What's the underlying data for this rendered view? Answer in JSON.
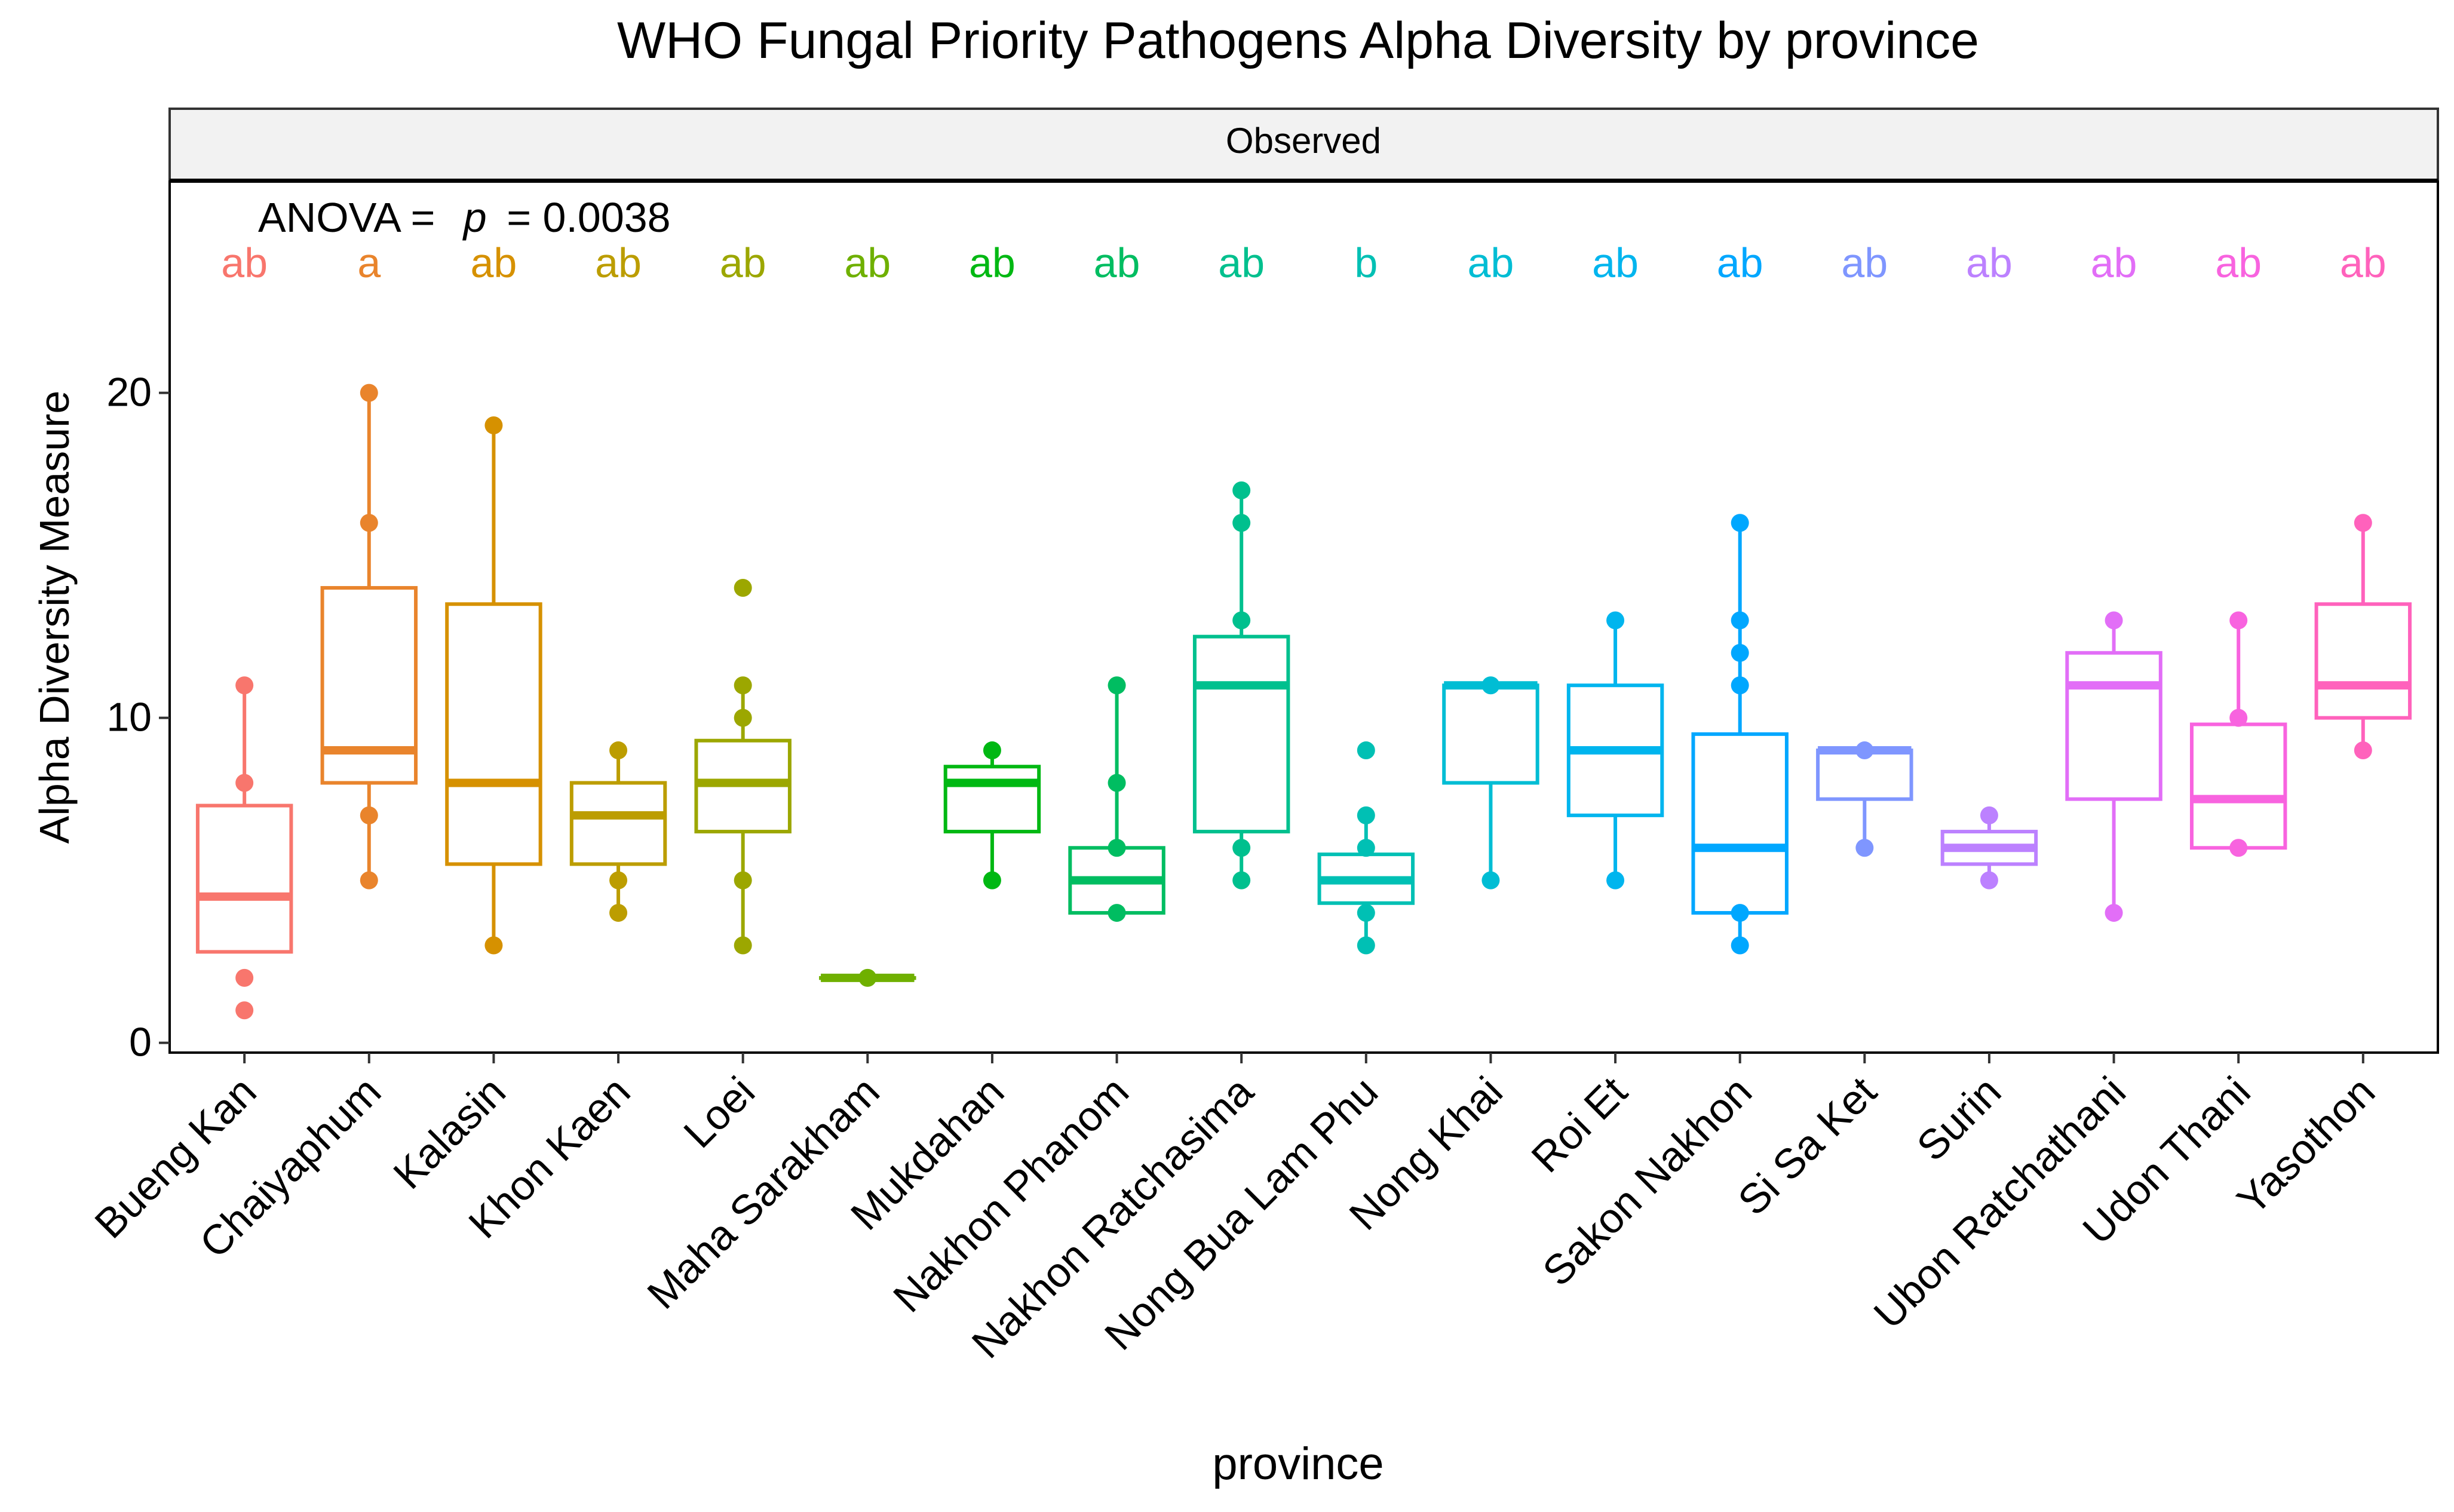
{
  "chart_data": {
    "type": "box",
    "title": "WHO Fungal Priority Pathogens Alpha Diversity by province",
    "facet_label": "Observed",
    "annotation": {
      "prefix": "ANOVA =",
      "p_symbol": "p",
      "p_value_text": "= 0.0038"
    },
    "xlabel": "province",
    "ylabel": "Alpha Diversity Measure",
    "ylim": [
      -0.3,
      26.5
    ],
    "yticks": [
      0,
      10,
      20
    ],
    "letter_y": 24,
    "groups": [
      {
        "name": "Bueng Kan",
        "color": "#F8766D",
        "letter": "ab",
        "box": {
          "q1": 2.8,
          "median": 4.5,
          "q3": 7.3,
          "lower": 2.8,
          "upper": 11
        },
        "points": [
          11,
          8,
          2,
          1
        ]
      },
      {
        "name": "Chaiyaphum",
        "color": "#E9842C",
        "letter": "a",
        "box": {
          "q1": 8,
          "median": 9,
          "q3": 14,
          "lower": 5,
          "upper": 20
        },
        "points": [
          20,
          16,
          7,
          5
        ]
      },
      {
        "name": "Kalasin",
        "color": "#D69100",
        "letter": "ab",
        "box": {
          "q1": 5.5,
          "median": 8,
          "q3": 13.5,
          "lower": 3,
          "upper": 19
        },
        "points": [
          19,
          3
        ]
      },
      {
        "name": "Khon Kaen",
        "color": "#BC9D00",
        "letter": "ab",
        "box": {
          "q1": 5.5,
          "median": 7,
          "q3": 8,
          "lower": 4,
          "upper": 9
        },
        "points": [
          9,
          5,
          4
        ]
      },
      {
        "name": "Loei",
        "color": "#9CA700",
        "letter": "ab",
        "box": {
          "q1": 6.5,
          "median": 8,
          "q3": 9.3,
          "lower": 3,
          "upper": 11
        },
        "points": [
          14,
          11,
          10,
          5,
          3
        ]
      },
      {
        "name": "Maha Sarakham",
        "color": "#6FB000",
        "letter": "ab",
        "box": {
          "q1": 2,
          "median": 2,
          "q3": 2,
          "lower": 2,
          "upper": 2
        },
        "points": [
          2
        ]
      },
      {
        "name": "Mukdahan",
        "color": "#00B813",
        "letter": "ab",
        "box": {
          "q1": 6.5,
          "median": 8,
          "q3": 8.5,
          "lower": 5,
          "upper": 9
        },
        "points": [
          9,
          5
        ]
      },
      {
        "name": "Nakhon Phanom",
        "color": "#00BD61",
        "letter": "ab",
        "box": {
          "q1": 4,
          "median": 5,
          "q3": 6,
          "lower": 4,
          "upper": 11
        },
        "points": [
          11,
          8,
          6,
          4
        ]
      },
      {
        "name": "Nakhon Ratchasima",
        "color": "#00C08E",
        "letter": "ab",
        "box": {
          "q1": 6.5,
          "median": 11,
          "q3": 12.5,
          "lower": 5,
          "upper": 17
        },
        "points": [
          17,
          16,
          13,
          6,
          5
        ]
      },
      {
        "name": "Nong Bua Lam Phu",
        "color": "#00C0B4",
        "letter": "b",
        "box": {
          "q1": 4.3,
          "median": 5,
          "q3": 5.8,
          "lower": 3,
          "upper": 7
        },
        "points": [
          9,
          7,
          6,
          4,
          3
        ]
      },
      {
        "name": "Nong Khai",
        "color": "#00BDD4",
        "letter": "ab",
        "box": {
          "q1": 8,
          "median": 11,
          "q3": 11,
          "lower": 5,
          "upper": 11
        },
        "points": [
          11,
          5
        ]
      },
      {
        "name": "Roi Et",
        "color": "#00B5EE",
        "letter": "ab",
        "box": {
          "q1": 7,
          "median": 9,
          "q3": 11,
          "lower": 5,
          "upper": 13
        },
        "points": [
          13,
          5
        ]
      },
      {
        "name": "Sakon Nakhon",
        "color": "#00A7FF",
        "letter": "ab",
        "box": {
          "q1": 4,
          "median": 6,
          "q3": 9.5,
          "lower": 3,
          "upper": 16
        },
        "points": [
          16,
          13,
          12,
          11,
          4,
          3
        ]
      },
      {
        "name": "Si Sa Ket",
        "color": "#7F96FF",
        "letter": "ab",
        "box": {
          "q1": 7.5,
          "median": 9,
          "q3": 9,
          "lower": 6,
          "upper": 9
        },
        "points": [
          9,
          6
        ]
      },
      {
        "name": "Surin",
        "color": "#BC81FF",
        "letter": "ab",
        "box": {
          "q1": 5.5,
          "median": 6,
          "q3": 6.5,
          "lower": 5,
          "upper": 7
        },
        "points": [
          7,
          5
        ]
      },
      {
        "name": "Ubon Ratchathani",
        "color": "#E26EF7",
        "letter": "ab",
        "box": {
          "q1": 7.5,
          "median": 11,
          "q3": 12,
          "lower": 4,
          "upper": 13
        },
        "points": [
          13,
          4
        ]
      },
      {
        "name": "Udon Thani",
        "color": "#F863DF",
        "letter": "ab",
        "box": {
          "q1": 6,
          "median": 7.5,
          "q3": 9.8,
          "lower": 6,
          "upper": 13
        },
        "points": [
          13,
          10,
          6
        ]
      },
      {
        "name": "Yasothon",
        "color": "#FF62BC",
        "letter": "ab",
        "box": {
          "q1": 10,
          "median": 11,
          "q3": 13.5,
          "lower": 9,
          "upper": 16
        },
        "points": [
          16,
          9
        ]
      }
    ]
  }
}
